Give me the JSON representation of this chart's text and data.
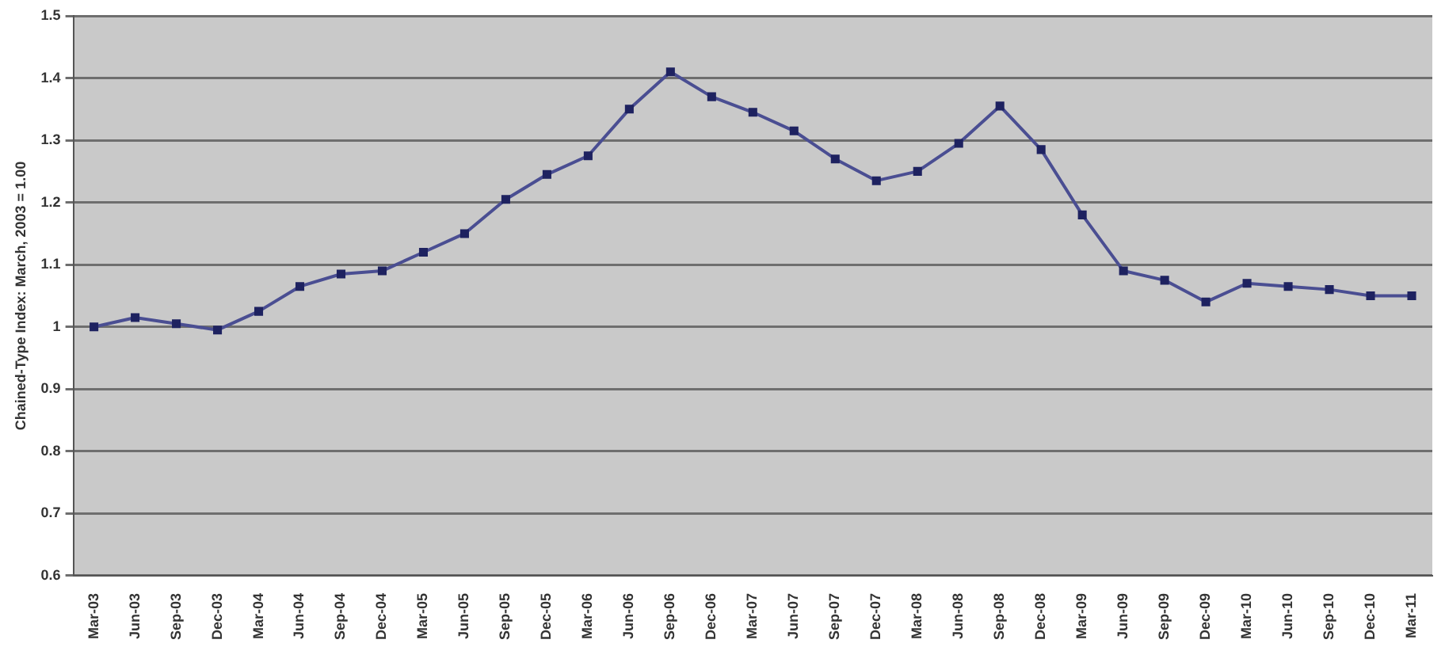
{
  "chart_data": {
    "type": "line",
    "ylabel": "Chained-Type Index: March, 2003 = 1.00",
    "categories": [
      "Mar-03",
      "Jun-03",
      "Sep-03",
      "Dec-03",
      "Mar-04",
      "Jun-04",
      "Sep-04",
      "Dec-04",
      "Mar-05",
      "Jun-05",
      "Sep-05",
      "Dec-05",
      "Mar-06",
      "Jun-06",
      "Sep-06",
      "Dec-06",
      "Mar-07",
      "Jun-07",
      "Sep-07",
      "Dec-07",
      "Mar-08",
      "Jun-08",
      "Sep-08",
      "Dec-08",
      "Mar-09",
      "Jun-09",
      "Sep-09",
      "Dec-09",
      "Mar-10",
      "Jun-10",
      "Sep-10",
      "Dec-10",
      "Mar-11"
    ],
    "series": [
      {
        "color": "#4a4e92",
        "values": [
          1.0,
          1.015,
          1.005,
          0.995,
          1.025,
          1.065,
          1.085,
          1.09,
          1.12,
          1.15,
          1.205,
          1.245,
          1.275,
          1.35,
          1.41,
          1.37,
          1.345,
          1.315,
          1.27,
          1.235,
          1.25,
          1.295,
          1.355,
          1.285,
          1.18,
          1.09,
          1.075,
          1.04,
          1.07,
          1.065,
          1.06,
          1.05,
          1.05
        ]
      }
    ],
    "ylim": [
      0.6,
      1.5
    ],
    "yticks": [
      0.6,
      0.7,
      0.8,
      0.9,
      1,
      1.1,
      1.2,
      1.3,
      1.4,
      1.5
    ],
    "grid": "y",
    "legend": false,
    "marker": "square",
    "line_style": "solid"
  }
}
